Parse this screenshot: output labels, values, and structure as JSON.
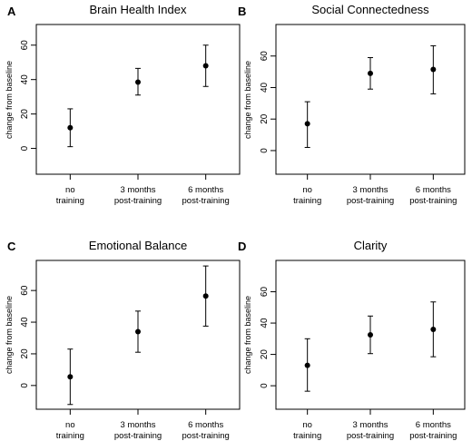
{
  "figure": {
    "panels_note": ""
  },
  "chart_data": [
    {
      "type": "scatter",
      "panel_letter": "A",
      "title": "Brain Health Index",
      "ylabel": "change from baseline",
      "xlabel": "",
      "categories": [
        [
          "no",
          "training"
        ],
        [
          "3 months",
          "post-training"
        ],
        [
          "6 months",
          "post-training"
        ]
      ],
      "yticks": [
        0,
        20,
        40,
        60
      ],
      "ylim": [
        -15,
        72
      ],
      "grid": false,
      "series": [
        {
          "values": [
            12,
            38.5,
            48
          ],
          "lower": [
            1,
            31,
            36
          ],
          "upper": [
            23,
            46.5,
            60
          ]
        }
      ]
    },
    {
      "type": "scatter",
      "panel_letter": "B",
      "title": "Social Connectedness",
      "ylabel": "change from baseline",
      "xlabel": "",
      "categories": [
        [
          "no",
          "training"
        ],
        [
          "3 months",
          "post-training"
        ],
        [
          "6 months",
          "post-training"
        ]
      ],
      "yticks": [
        0,
        20,
        40,
        60
      ],
      "ylim": [
        -15,
        80
      ],
      "grid": false,
      "series": [
        {
          "values": [
            17,
            49,
            51.5
          ],
          "lower": [
            2,
            39,
            36
          ],
          "upper": [
            31,
            59,
            66.5
          ]
        }
      ]
    },
    {
      "type": "scatter",
      "panel_letter": "C",
      "title": "Emotional Balance",
      "ylabel": "change from baseline",
      "xlabel": "",
      "categories": [
        [
          "no",
          "training"
        ],
        [
          "3 months",
          "post-training"
        ],
        [
          "6 months",
          "post-training"
        ]
      ],
      "yticks": [
        0,
        20,
        40,
        60
      ],
      "ylim": [
        -15,
        79
      ],
      "grid": false,
      "series": [
        {
          "values": [
            5.5,
            34,
            56.5
          ],
          "lower": [
            -12,
            21,
            37.5
          ],
          "upper": [
            23,
            47,
            75.5
          ]
        }
      ]
    },
    {
      "type": "scatter",
      "panel_letter": "D",
      "title": "Clarity",
      "ylabel": "change from baseline",
      "xlabel": "",
      "categories": [
        [
          "no",
          "training"
        ],
        [
          "3 months",
          "post-training"
        ],
        [
          "6 months",
          "post-training"
        ]
      ],
      "yticks": [
        0,
        20,
        40,
        60
      ],
      "ylim": [
        -15,
        80
      ],
      "grid": false,
      "series": [
        {
          "values": [
            13,
            32.5,
            36
          ],
          "lower": [
            -3.5,
            20.5,
            18.5
          ],
          "upper": [
            30,
            44.5,
            53.5
          ]
        }
      ]
    }
  ]
}
